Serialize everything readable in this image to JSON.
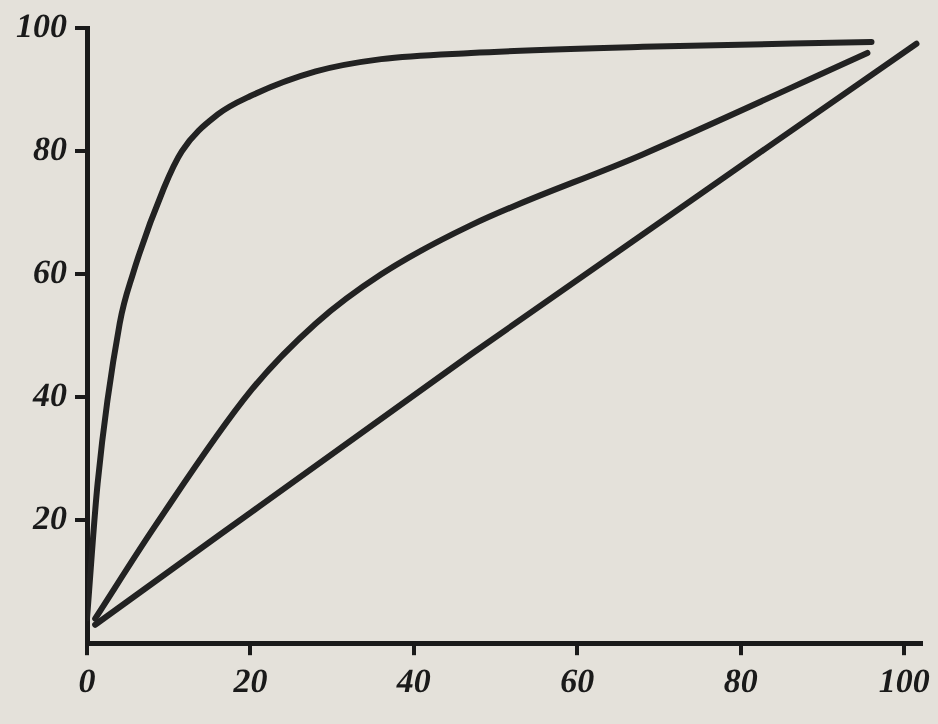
{
  "chart_data": {
    "type": "line",
    "xlim": [
      0,
      102
    ],
    "ylim": [
      0,
      100
    ],
    "xticks": [
      0,
      20,
      40,
      60,
      80,
      100
    ],
    "yticks": [
      20,
      40,
      60,
      80,
      100
    ],
    "grid": false,
    "legend": false,
    "marker": "none",
    "line_style": "solid",
    "series": [
      {
        "color": "#222222",
        "x": [
          0,
          1.3,
          4,
          5.6,
          9.4,
          11.6,
          16,
          20,
          28,
          36,
          47,
          68,
          96
        ],
        "values": [
          4,
          26,
          52,
          60,
          74,
          80,
          86,
          89,
          93,
          95,
          96,
          97,
          97.8
        ]
      },
      {
        "color": "#222222",
        "x": [
          1,
          8.3,
          20,
          28,
          36,
          47,
          68,
          95.5
        ],
        "values": [
          4,
          19,
          41,
          52,
          60,
          68,
          79.5,
          96
        ]
      },
      {
        "color": "#222222",
        "x": [
          1,
          47,
          101.5
        ],
        "values": [
          3,
          47,
          97.5
        ]
      }
    ]
  }
}
